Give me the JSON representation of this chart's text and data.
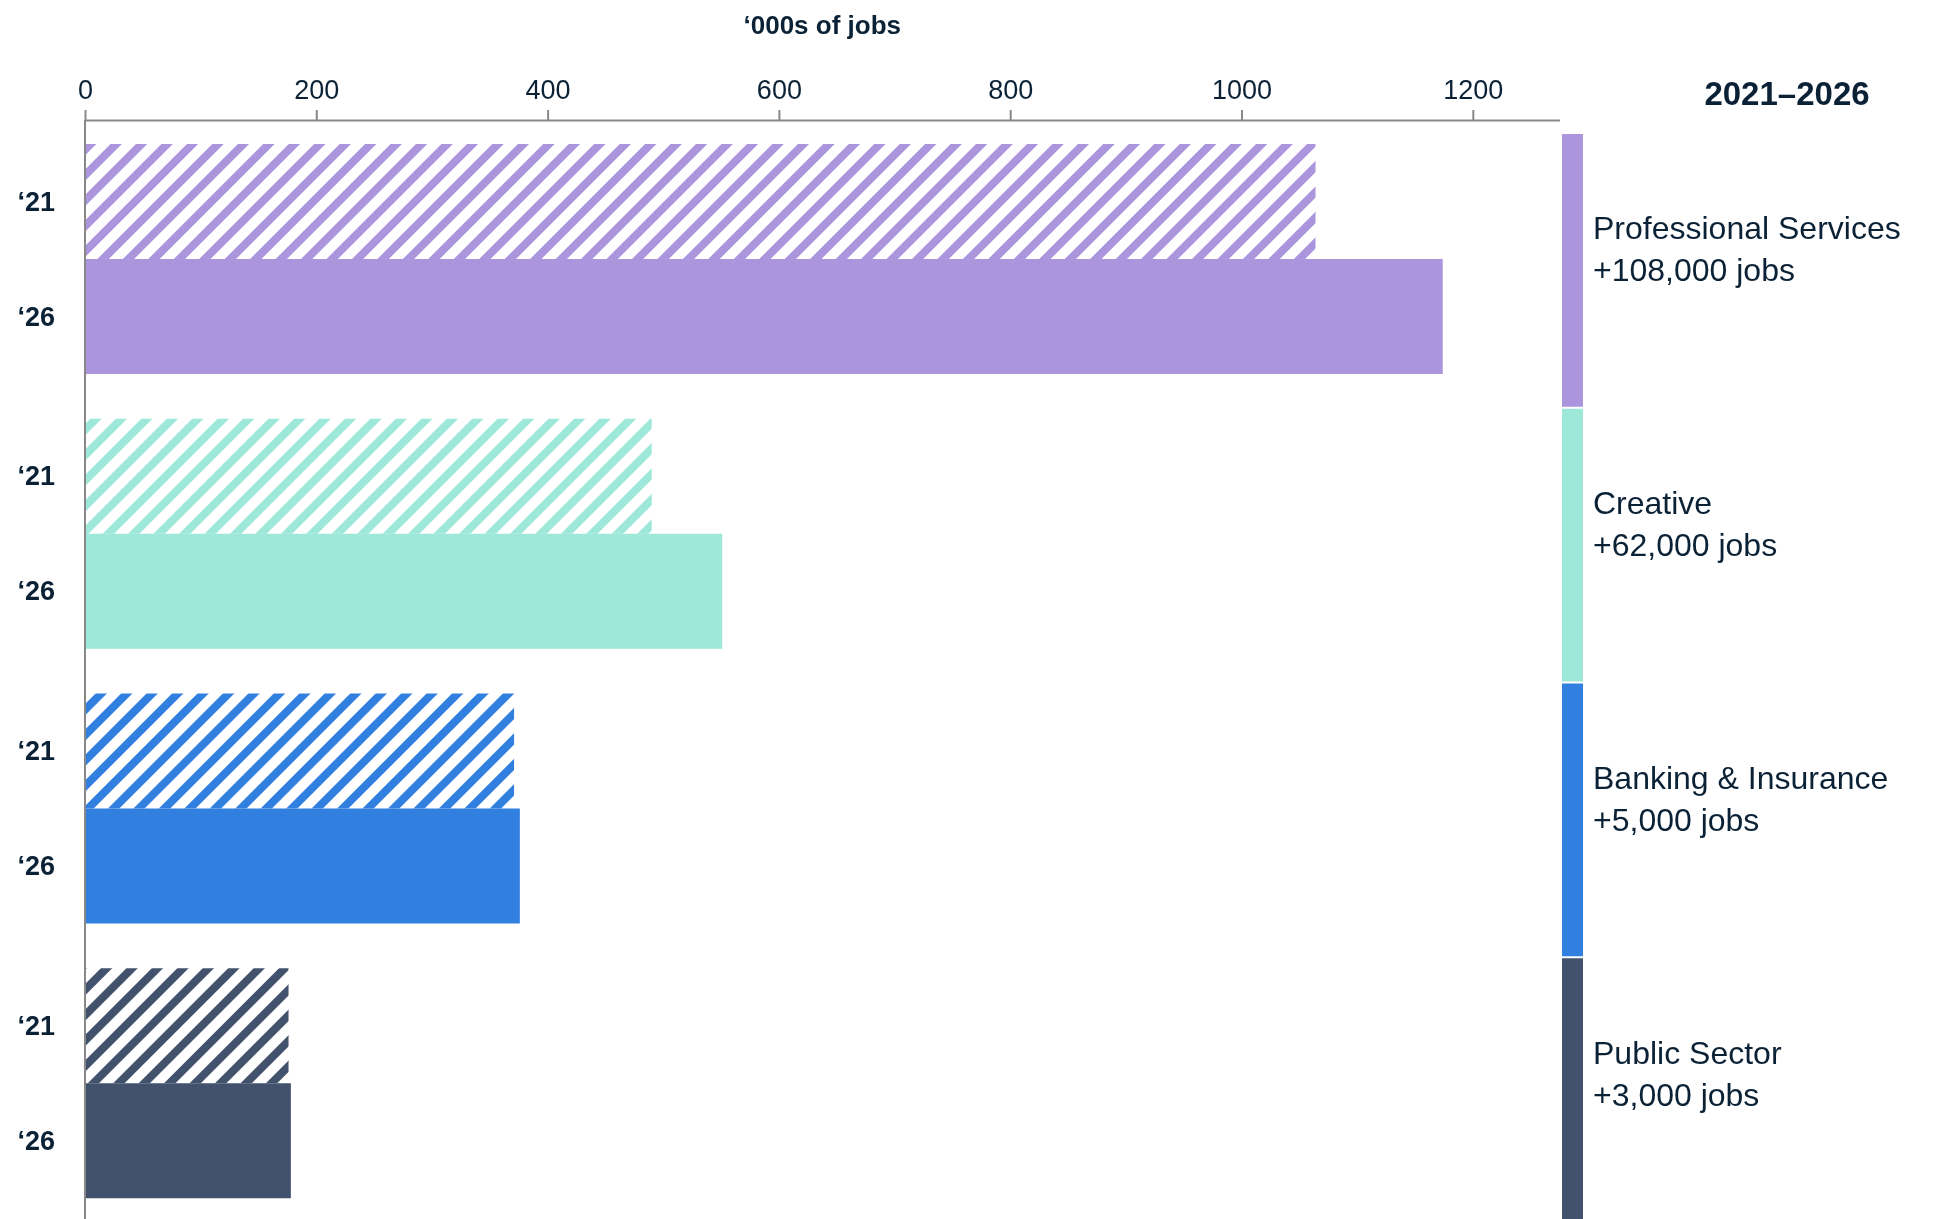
{
  "chart_data": {
    "type": "bar",
    "orientation": "horizontal",
    "xlabel": "‘000s of jobs",
    "legend_title": "2021–2026",
    "categories": [
      "‘21",
      "‘26",
      "‘21",
      "‘26",
      "‘21",
      "‘26",
      "‘21",
      "‘26"
    ],
    "series": [
      {
        "values": [
          1064,
          null,
          490,
          null,
          371,
          null,
          176,
          null
        ],
        "colors": [
          "#ab95dd",
          null,
          "#9de8d8",
          null,
          "#3180e0",
          null,
          "#42526d",
          null
        ]
      },
      {
        "values": [
          null,
          1174,
          null,
          551,
          null,
          376,
          null,
          178
        ],
        "colors": [
          null,
          "#ab95dd",
          null,
          "#9de8d8",
          null,
          "#3180e0",
          null,
          "#42526d"
        ]
      }
    ],
    "xlim": [
      0,
      1275
    ],
    "xticks": [
      0,
      200,
      400,
      600,
      800,
      1000,
      1200
    ],
    "annotations": [
      "Professional Services\n+108,000 jobs",
      "Creative\n+62,000 jobs",
      "Banking & Insurance\n+5,000 jobs",
      "Public Sector\n+3,000 jobs"
    ]
  }
}
